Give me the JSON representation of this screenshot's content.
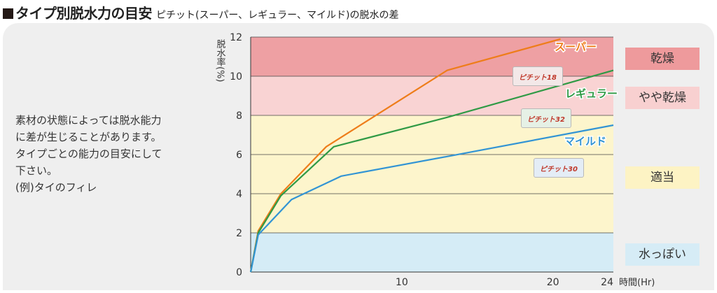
{
  "header": {
    "title": "タイプ別脱水力の目安",
    "subtitle": "ピチット(スーパー、レギュラー、マイルド)の脱水の差"
  },
  "description": {
    "lines": [
      "素材の状態によっては脱水能力",
      "に差が生じることがあります。",
      "タイプごとの能力の目安にして",
      "下さい。",
      "(例)タイのフィレ"
    ]
  },
  "levels": [
    {
      "label": "乾燥",
      "color": "#ee9a9c"
    },
    {
      "label": "やや乾燥",
      "color": "#f8d0d0"
    },
    {
      "label": "適当",
      "color": "#fdf3c4"
    },
    {
      "label": "水っぽい",
      "color": "#d6ecf6"
    }
  ],
  "products": {
    "super_label": "ピチット18",
    "regular_label": "ピチット32",
    "mild_label": "ピチット30"
  },
  "chart_data": {
    "type": "line",
    "xlabel": "時間(Hr)",
    "ylabel": "脱水率(%)",
    "xlim": [
      0,
      24
    ],
    "ylim": [
      0,
      12
    ],
    "x_ticks": [
      10,
      20,
      24
    ],
    "y_ticks": [
      0,
      2,
      4,
      6,
      8,
      10,
      12
    ],
    "bands": [
      {
        "from": 10,
        "to": 12,
        "level": "乾燥",
        "color": "#eea0a3"
      },
      {
        "from": 8,
        "to": 10,
        "level": "やや乾燥",
        "color": "#f9d3d3"
      },
      {
        "from": 2,
        "to": 8,
        "level": "適当",
        "color": "#fdf5cc"
      },
      {
        "from": 0,
        "to": 2,
        "level": "水っぽい",
        "color": "#d5ecf6"
      }
    ],
    "series": [
      {
        "name": "スーパー",
        "color": "#ee7d1a",
        "x": [
          0,
          0.5,
          2,
          5,
          13,
          20.5
        ],
        "y": [
          0,
          2.1,
          4.0,
          6.4,
          10.3,
          11.9
        ]
      },
      {
        "name": "レギュラー",
        "color": "#2f9a45",
        "x": [
          0,
          0.5,
          2,
          5.5,
          13,
          24
        ],
        "y": [
          0,
          2.0,
          3.9,
          6.4,
          7.9,
          10.3
        ]
      },
      {
        "name": "マイルド",
        "color": "#3294d4",
        "x": [
          0,
          0.5,
          2.7,
          6,
          13,
          24
        ],
        "y": [
          0,
          1.9,
          3.7,
          4.9,
          5.9,
          7.5
        ]
      }
    ]
  }
}
